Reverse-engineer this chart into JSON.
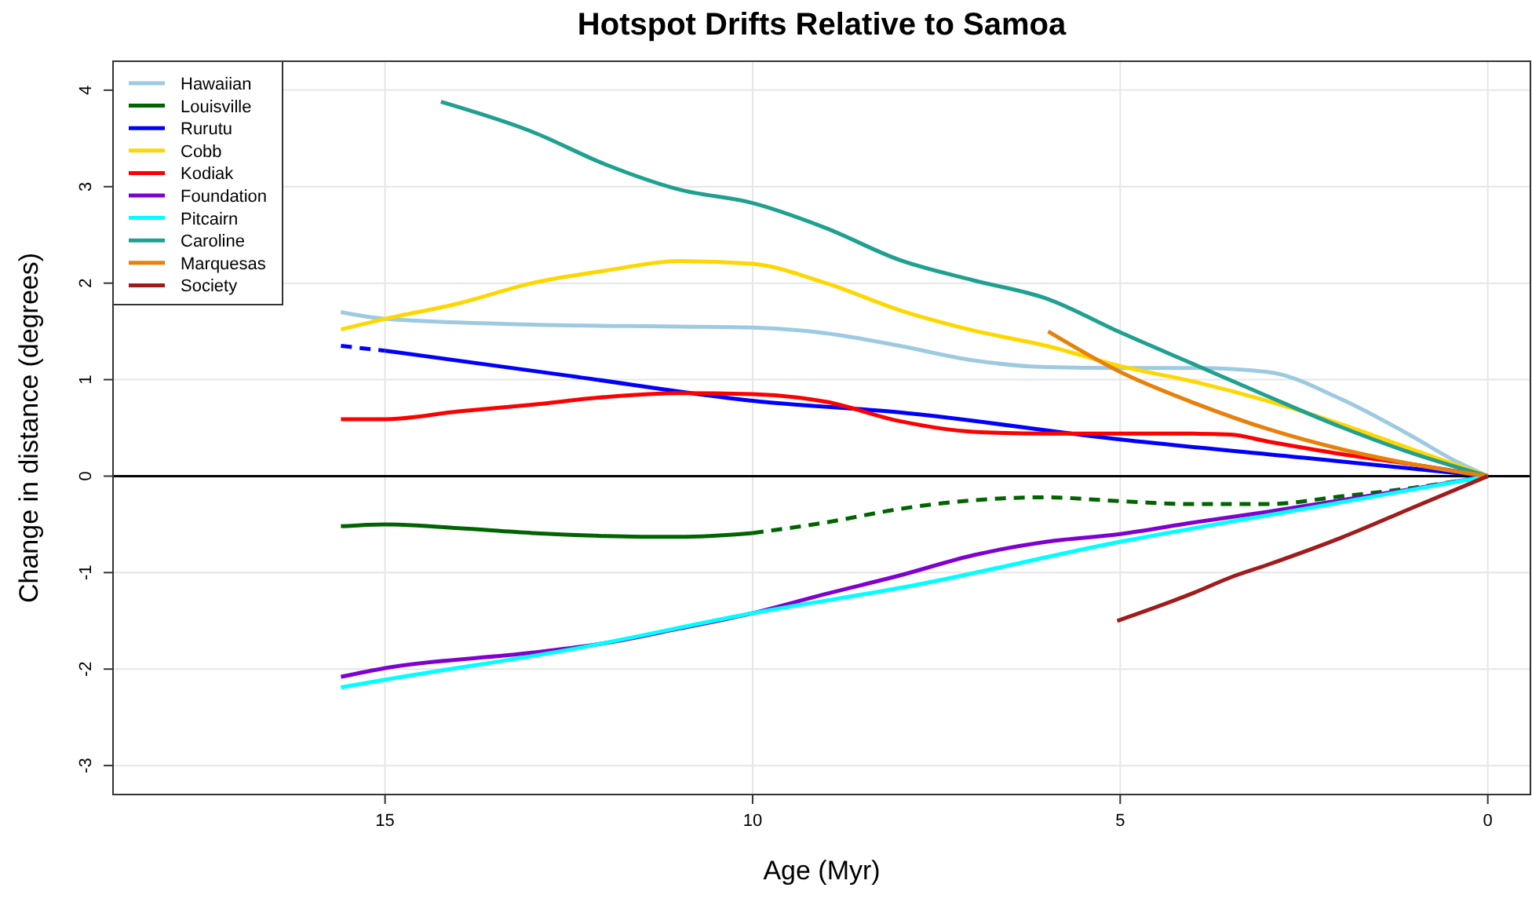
{
  "chart_data": {
    "type": "line",
    "title": "Hotspot Drifts Relative to Samoa",
    "xlabel": "Age (Myr)",
    "ylabel": "Change in distance (degrees)",
    "xlim": [
      18.7,
      -0.58
    ],
    "ylim": [
      -3.3,
      4.3
    ],
    "xticks": [
      15,
      10,
      5,
      0
    ],
    "yticks": [
      -3,
      -2,
      -1,
      0,
      1,
      2,
      3,
      4
    ],
    "grid": true,
    "legend": "top left",
    "line_style": "solid",
    "marker": "none",
    "ref_lines": [
      {
        "axis": "y",
        "value": 0,
        "color": "#000000"
      }
    ],
    "series": [
      {
        "name": "Hawaiian",
        "color": "#9ecae1",
        "x": [
          15.6,
          15,
          13,
          11,
          10,
          9,
          8,
          7,
          6,
          5,
          4,
          3,
          2,
          1,
          0.5,
          0
        ],
        "values": [
          1.7,
          1.63,
          1.57,
          1.55,
          1.54,
          1.48,
          1.35,
          1.2,
          1.13,
          1.12,
          1.12,
          1.08,
          0.8,
          0.4,
          0.18,
          0
        ]
      },
      {
        "name": "Louisville",
        "color": "#006400",
        "x": [
          15.6,
          15,
          14,
          13,
          12,
          11,
          10
        ],
        "values": [
          -0.52,
          -0.5,
          -0.54,
          -0.59,
          -0.62,
          -0.63,
          -0.59
        ]
      },
      {
        "color": "#006400",
        "line_style": "dashed",
        "x": [
          10,
          9,
          8,
          7,
          6,
          5,
          4,
          3,
          2,
          1,
          0
        ],
        "values": [
          -0.59,
          -0.48,
          -0.34,
          -0.25,
          -0.22,
          -0.26,
          -0.29,
          -0.29,
          -0.21,
          -0.12,
          0
        ]
      },
      {
        "name": "Rurutu",
        "color": "#0000ff",
        "x": [
          15,
          12.5,
          10,
          8,
          5,
          2.5,
          0
        ],
        "values": [
          1.3,
          1.04,
          0.78,
          0.66,
          0.38,
          0.19,
          0
        ]
      },
      {
        "color": "#0000ff",
        "line_style": "dashed",
        "x": [
          15.6,
          15
        ],
        "values": [
          1.35,
          1.3
        ]
      },
      {
        "name": "Cobb",
        "color": "#ffd700",
        "x": [
          15.6,
          15,
          14,
          13,
          12,
          11,
          10,
          9,
          8,
          7,
          6,
          5,
          4,
          3,
          2,
          1,
          0
        ],
        "values": [
          1.52,
          1.63,
          1.79,
          2.0,
          2.13,
          2.23,
          2.2,
          2.0,
          1.72,
          1.51,
          1.35,
          1.14,
          0.98,
          0.78,
          0.54,
          0.27,
          0
        ]
      },
      {
        "name": "Kodiak",
        "color": "#ff0000",
        "x": [
          15.6,
          15,
          14,
          13,
          12,
          11,
          10,
          9,
          8,
          7,
          6,
          5,
          4,
          3.5,
          3,
          2,
          1,
          0
        ],
        "values": [
          0.59,
          0.59,
          0.67,
          0.74,
          0.82,
          0.86,
          0.85,
          0.77,
          0.57,
          0.46,
          0.44,
          0.44,
          0.44,
          0.43,
          0.36,
          0.23,
          0.12,
          0
        ]
      },
      {
        "name": "Foundation",
        "color": "#8000d0",
        "x": [
          15.6,
          15,
          13,
          12,
          11,
          10,
          9,
          8,
          7,
          6,
          5,
          4,
          3,
          2,
          1,
          0
        ],
        "values": [
          -2.08,
          -1.99,
          -1.83,
          -1.73,
          -1.58,
          -1.42,
          -1.22,
          -1.03,
          -0.82,
          -0.68,
          -0.6,
          -0.48,
          -0.37,
          -0.25,
          -0.13,
          0
        ]
      },
      {
        "name": "Pitcairn",
        "color": "#00ffff",
        "x": [
          15.6,
          15,
          12.5,
          10,
          7.86,
          5,
          2.5,
          0
        ],
        "values": [
          -2.19,
          -2.11,
          -1.8,
          -1.42,
          -1.14,
          -0.68,
          -0.34,
          0
        ]
      },
      {
        "name": "Caroline",
        "color": "#20a090",
        "x": [
          14.24,
          13,
          12,
          11,
          10,
          9,
          8,
          7,
          6,
          5,
          4,
          3,
          2,
          1,
          0
        ],
        "values": [
          3.88,
          3.57,
          3.23,
          2.97,
          2.83,
          2.57,
          2.24,
          2.03,
          1.84,
          1.49,
          1.16,
          0.83,
          0.51,
          0.23,
          0
        ]
      },
      {
        "name": "Marquesas",
        "color": "#e8800a",
        "x": [
          5.98,
          5,
          4,
          3,
          2,
          1,
          0
        ],
        "values": [
          1.5,
          1.08,
          0.76,
          0.49,
          0.28,
          0.12,
          0
        ]
      },
      {
        "name": "Society",
        "color": "#a01c1c",
        "x": [
          5.04,
          4,
          3.5,
          3,
          2,
          1,
          0
        ],
        "values": [
          -1.5,
          -1.21,
          -1.05,
          -0.92,
          -0.64,
          -0.32,
          0
        ]
      }
    ]
  }
}
